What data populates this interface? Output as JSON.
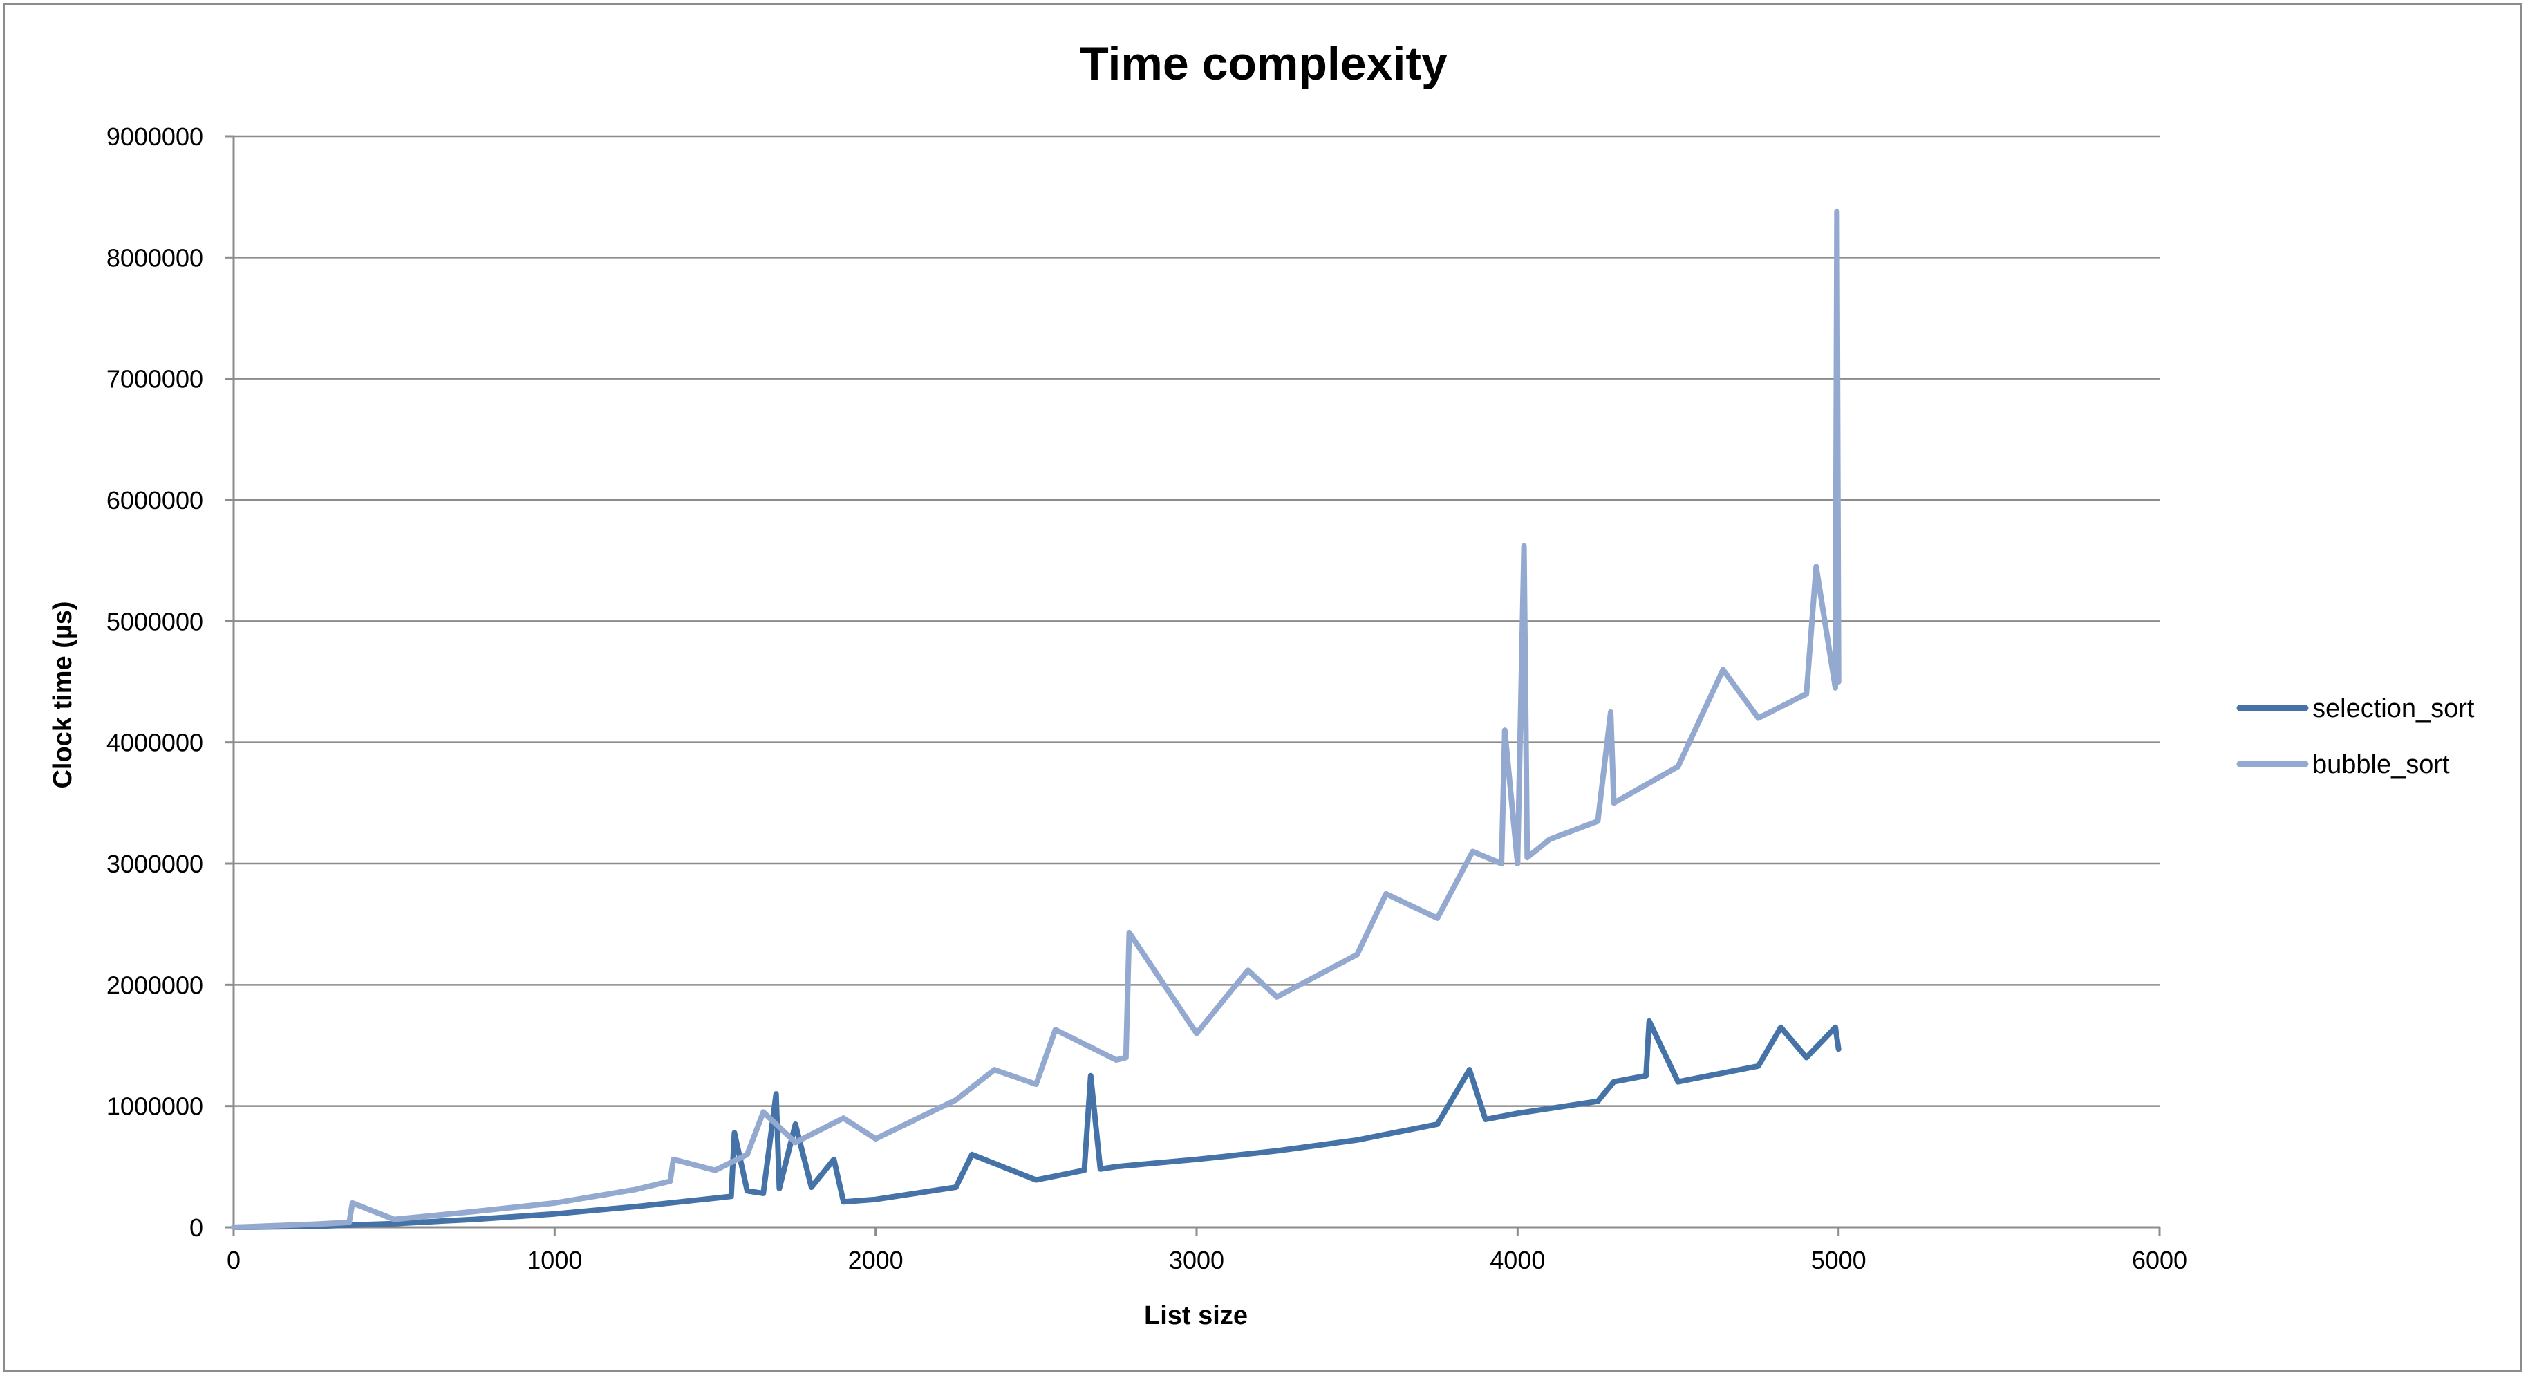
{
  "chart_data": {
    "type": "line",
    "title": "Time complexity",
    "xlabel": "List size",
    "ylabel": "Clock time (µs)",
    "xlim": [
      0,
      6000
    ],
    "ylim": [
      0,
      9000000
    ],
    "x_ticks": [
      "0",
      "1000",
      "2000",
      "3000",
      "4000",
      "5000",
      "6000"
    ],
    "y_ticks": [
      "0",
      "1000000",
      "2000000",
      "3000000",
      "4000000",
      "5000000",
      "6000000",
      "7000000",
      "8000000",
      "9000000"
    ],
    "grid": true,
    "legend_position": "right",
    "series": [
      {
        "name": "selection_sort",
        "color": "#4572a7",
        "x": [
          0,
          250,
          500,
          750,
          1000,
          1250,
          1500,
          1550,
          1560,
          1600,
          1650,
          1690,
          1700,
          1750,
          1800,
          1870,
          1900,
          2000,
          2250,
          2300,
          2500,
          2650,
          2670,
          2700,
          2750,
          3000,
          3250,
          3500,
          3750,
          3850,
          3900,
          4000,
          4250,
          4300,
          4400,
          4410,
          4500,
          4750,
          4820,
          4900,
          4990,
          5000
        ],
        "y": [
          0,
          8000,
          30000,
          65000,
          110000,
          170000,
          240000,
          255000,
          780000,
          300000,
          280000,
          1100000,
          320000,
          850000,
          330000,
          560000,
          210000,
          230000,
          330000,
          600000,
          390000,
          470000,
          1250000,
          480000,
          500000,
          560000,
          630000,
          720000,
          850000,
          1300000,
          890000,
          940000,
          1040000,
          1200000,
          1250000,
          1700000,
          1200000,
          1330000,
          1650000,
          1400000,
          1650000,
          1470000
        ]
      },
      {
        "name": "bubble_sort",
        "color": "#93a9cf",
        "x": [
          0,
          250,
          360,
          370,
          500,
          750,
          1000,
          1250,
          1360,
          1370,
          1500,
          1600,
          1650,
          1750,
          1900,
          2000,
          2250,
          2370,
          2500,
          2560,
          2750,
          2780,
          2790,
          3000,
          3160,
          3250,
          3500,
          3590,
          3750,
          3860,
          3950,
          3960,
          4000,
          4020,
          4030,
          4100,
          4250,
          4290,
          4300,
          4500,
          4640,
          4750,
          4900,
          4930,
          4990,
          4995,
          5000
        ],
        "y": [
          0,
          25000,
          40000,
          200000,
          65000,
          130000,
          200000,
          310000,
          380000,
          560000,
          470000,
          600000,
          950000,
          700000,
          900000,
          730000,
          1050000,
          1300000,
          1180000,
          1630000,
          1380000,
          1400000,
          2430000,
          1600000,
          2120000,
          1900000,
          2250000,
          2750000,
          2550000,
          3100000,
          3000000,
          4100000,
          3000000,
          5620000,
          3050000,
          3200000,
          3350000,
          4250000,
          3500000,
          3800000,
          4600000,
          4200000,
          4400000,
          5450000,
          4450000,
          8380000,
          4500000
        ]
      }
    ]
  }
}
